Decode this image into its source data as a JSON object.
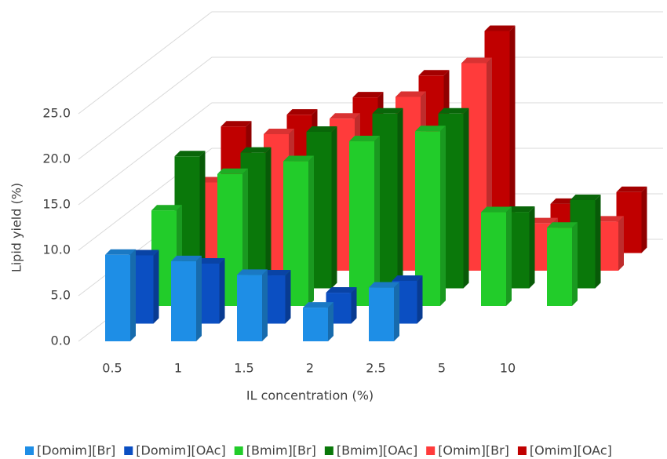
{
  "chart_data": {
    "type": "bar3d",
    "x_label": "IL concentration (%)",
    "y_label": "Lipid yield (%)",
    "categories": [
      "0.5",
      "1",
      "1.5",
      "2",
      "2.5",
      "5",
      "10"
    ],
    "ylim": [
      0,
      25
    ],
    "yticks": [
      {
        "value": 0,
        "label": "0.0"
      },
      {
        "value": 5,
        "label": "5.0"
      },
      {
        "value": 10,
        "label": "10.0"
      },
      {
        "value": 15,
        "label": "15.0"
      },
      {
        "value": 20,
        "label": "20.0"
      },
      {
        "value": 25,
        "label": "25.0"
      }
    ],
    "grid": true,
    "legend": "bottom",
    "series": [
      {
        "name": "[Domim][Br]",
        "color": "#1e8ee6",
        "values": [
          9.5,
          8.8,
          7.3,
          3.7,
          5.9,
          null,
          null
        ]
      },
      {
        "name": "[Domim][OAc]",
        "color": "#0b4fc2",
        "values": [
          7.5,
          6.6,
          5.3,
          3.4,
          4.7,
          null,
          null
        ]
      },
      {
        "name": "[Bmim][Br]",
        "color": "#22cc2a",
        "values": [
          10.5,
          14.5,
          15.9,
          18.1,
          19.2,
          10.3,
          8.6
        ]
      },
      {
        "name": "[Bmim][OAc]",
        "color": "#0a780a",
        "values": [
          14.5,
          14.9,
          17.2,
          19.2,
          19.2,
          8.4,
          9.7
        ]
      },
      {
        "name": "[Omim][Br]",
        "color": "#ff3b3b",
        "values": [
          9.7,
          15.0,
          16.7,
          19.1,
          22.8,
          5.2,
          5.4
        ]
      },
      {
        "name": "[Omim][OAc]",
        "color": "#c00000",
        "values": [
          13.9,
          15.2,
          17.1,
          19.5,
          24.4,
          5.4,
          6.7
        ]
      }
    ]
  }
}
